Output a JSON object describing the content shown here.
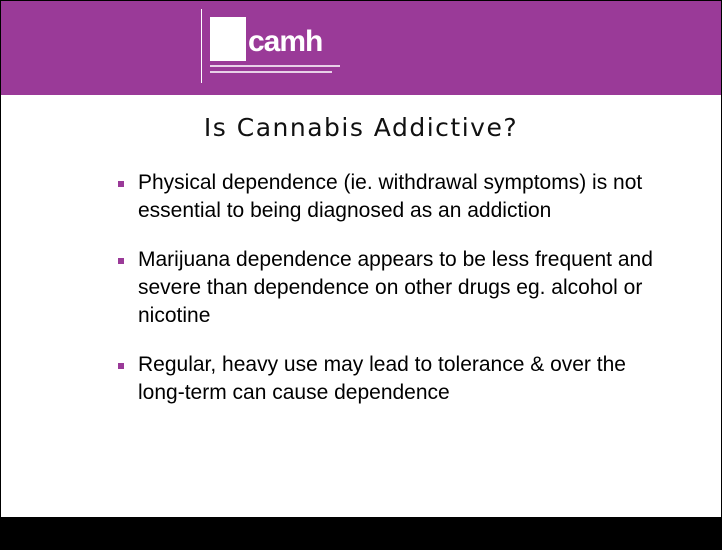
{
  "header": {
    "logo": "camh"
  },
  "title": "Is Cannabis Addictive?",
  "bullets": [
    "Physical dependence (ie. withdrawal symptoms) is not essential to being diagnosed as an addiction",
    "Marijuana dependence appears to be less frequent and severe than dependence on other drugs eg. alcohol or nicotine",
    "Regular, heavy use may lead to tolerance & over the long-term can cause dependence"
  ]
}
